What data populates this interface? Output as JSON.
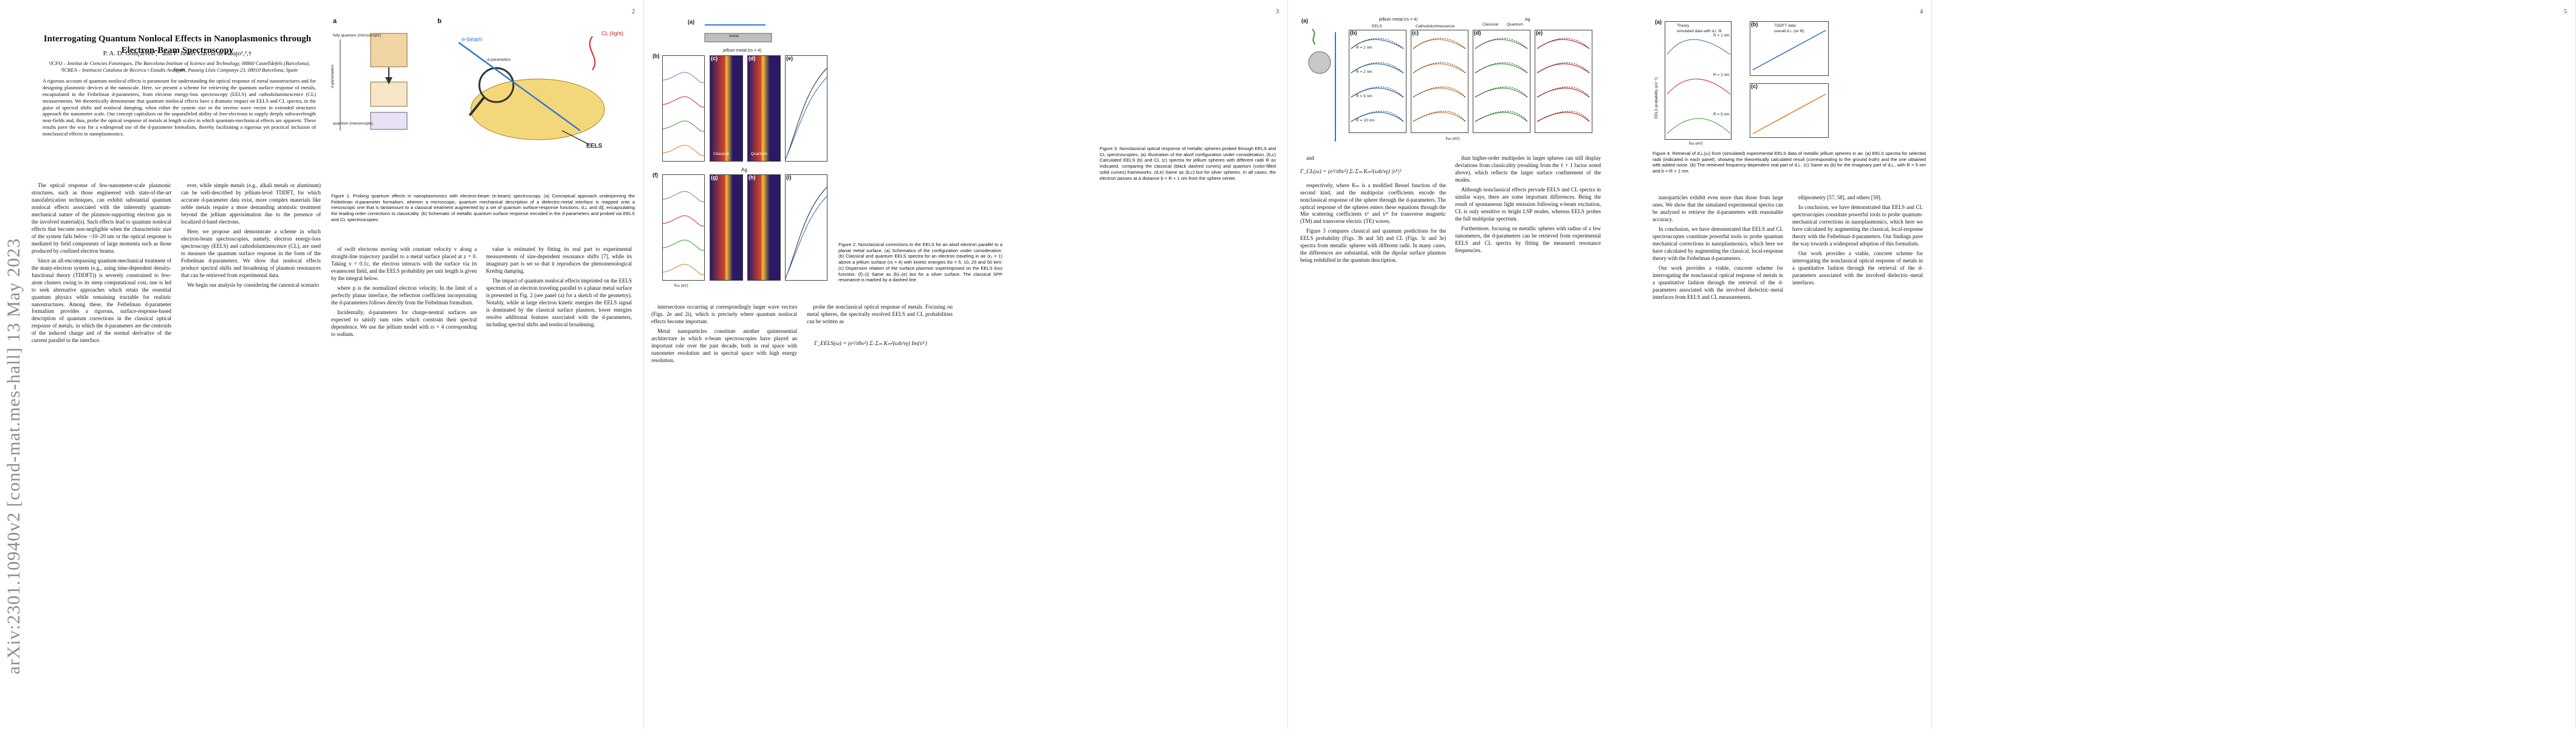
{
  "arxiv_id": "arXiv:2301.10940v2  [cond-mat.mes-hall]  13 May 2023",
  "page_numbers": [
    "2",
    "3",
    "4",
    "5"
  ],
  "title": "Interrogating Quantum Nonlocal Effects in Nanoplasmonics through Electron-Beam Spectroscopy",
  "authors": "P. A. D. Gonçalves¹,* and F. Javier García de Abajo¹,²,†",
  "affiliation_1": "¹ICFO – Institut de Ciencies Fotoniques, The Barcelona Institute of Science and Technology, 08860 Castelldefels (Barcelona), Spain",
  "affiliation_2": "²ICREA – Institució Catalana de Recerca i Estudis Avançats, Passeig Lluís Companys 23, 08010 Barcelona, Spain",
  "abstract": "A rigorous account of quantum nonlocal effects is paramount for understanding the optical response of metal nanostructures and for designing plasmonic devices at the nanoscale. Here, we present a scheme for retrieving the quantum surface response of metals, encapsulated in the Feibelman d-parameters, from electron energy-loss spectroscopy (EELS) and cathodoluminescence (CL) measurements. We theoretically demonstrate that quantum nonlocal effects have a dramatic impact on EELS and CL spectra, in the guise of spectral shifts and nonlocal damping, when either the system size or the inverse wave vector in extended structures approach the nanometer scale. Our concept capitalizes on the unparalleled ability of free-electrons to supply deeply subwavelength near-fields and, thus, probe the optical response of metals at length scales in which quantum-mechanical effects are apparent. These results pave the way for a widespread use of the d-parameter formalism, thereby facilitating a rigorous yet practical inclusion of nonclassical effects in nanoplasmonics.",
  "page1_col1": [
    "The optical response of few-nanometer-scale plasmonic structures, such as those engineered with state-of-the-art nanofabrication techniques, can exhibit substantial quantum nonlocal effects associated with the inherently quantum-mechanical nature of the plasmon-supporting electron gas in the involved material(s). Such effects lead to quantum nonlocal effects that become non-negligible when the characteristic size of the system falls below ~10–20 nm or the optical response is mediated by field components of large momenta such as those produced by confined electron beams.",
    "Since an all-encompassing quantum-mechanical treatment of the many-electron system (e.g., using time-dependent density-functional theory (TDDFT)) is severely constrained to few-atom clusters owing to its steep computational cost, one is led to seek alternative approaches which retain the essential quantum physics while remaining tractable for realistic nanostructures. Among these, the Feibelman d-parameter formalism provides a rigorous, surface-response-based description of quantum corrections in the classical optical response of metals, in which the d-parameters are the centroids of the induced charge and of the normal derivative of the current parallel to the interface."
  ],
  "page1_col2": [
    "ever, while simple metals (e.g., alkali metals or aluminum) can be well-described by jellium-level TDDFT, for which accurate d-parameter data exist, more complex materials like noble metals require a more demanding atomistic treatment beyond the jellium approximation due to the presence of localized d-band electrons.",
    "Here, we propose and demonstrate a scheme in which electron-beam spectroscopies, namely, electron energy-loss spectroscopy (EELS) and cathodoluminescence (CL), are used to measure the quantum surface response in the form of the Feibelman d-parameters. We show that nonlocal effects produce spectral shifts and broadening of plasmon resonances that can be retrieved from experimental data.",
    "We begin our analysis by considering the canonical scenario"
  ],
  "fig1_caption": "Figure 1. Probing quantum effects in nanoplasmonics with electron-beam (e-beam) spectroscopy. (a) Conceptual approach underpinning the Feibelman d-parameter formalism, wherein a microscopic, quantum mechanical description of a dielectric-metal interface is mapped onto a mesoscopic one that is tantamount to a classical treatment augmented by a set of quantum surface-response functions, d⊥ and d∥, encapsulating the leading-order corrections to classicality. (b) Schematic of metallic quantum surface response encoded in the d-parameters and probed via EELS and CL spectroscopies.",
  "fig1_labels": {
    "a": "a",
    "b": "b",
    "fully_quantum": "fully quantum (microscopic)",
    "d_parameters": "d-parameters",
    "quantum_meso": "quantum (mesoscopic)",
    "ebeam": "e-beam",
    "cl": "CL (light)",
    "eels": "EELS",
    "d_param_diag": "d-parameters"
  },
  "page2_col1": [
    "of swift electrons moving with constant velocity v along a straight-line trajectory parallel to a metal surface placed at z = 0. Taking v = 0.1c, the electron interacts with the surface via its evanescent field, and the EELS probability per unit length is given by the integral below.",
    "where p is the normalized electron velocity. In the limit of a perfectly planar interface, the reflection coefficient incorporating the d-parameters follows directly from the Feibelman formalism.",
    "Incidentally, d-parameters for charge-neutral surfaces are expected to satisfy sum rules which constrain their spectral dependence. We use the jellium model with rs = 4 corresponding to sodium."
  ],
  "page2_col2": [
    "value is estimated by fitting its real part to experimental measurements of size-dependent resonance shifts [7], while its imaginary part is set so that it reproduces the phenomenological Kreibig damping.",
    "The impact of quantum nonlocal effects imprinted on the EELS spectrum of an electron traveling parallel to a planar metal surface is presented in Fig. 2 (see panel (a) for a sketch of the geometry). Notably, while at large electron kinetic energies the EELS signal is dominated by the classical surface plasmon, lower energies resolve additional features associated with the d-parameters, including spectral shifts and nonlocal broadening."
  ],
  "fig2_caption": "Figure 2. Nonclassical corrections to the EELS for an aloof electron parallel to a planar metal surface. (a) Schematics of the configuration under consideration. (b) Classical and quantum EELS spectra for an electron traveling in air (ε₁ = 1) above a jellium surface (rs = 4) with kinetic energies Ee = 5, 10, 25 and 50 keV. (c) Dispersion relation of the surface plasmon superimposed on the EELS loss function. (f)–(i) Same as (b)–(e) but for a silver surface. The classical SPP resonance is marked by a dashed line.",
  "fig2_labels": {
    "a": "(a)",
    "b": "(b)",
    "c": "(c)",
    "d": "(d)",
    "e": "(e)",
    "f": "(f)",
    "g": "(g)",
    "h": "(h)",
    "i": "(i)",
    "metal": "metal",
    "jellium": "jellium metal (rs = 4)",
    "ag": "Ag",
    "classical": "Classical",
    "quantum": "Quantum",
    "xlabel": "ħω (eV)",
    "ylabel": "ΓEELS (µm⁻¹ eV⁻¹)"
  },
  "page2_bottom": [
    "intersections occurring at correspondingly larger wave vectors (Figs. 2e and 2i), which is precisely where quantum nonlocal effects become important.",
    "Metal nanoparticles constitute another quintessential architecture in which e-beam spectroscopies have played an important role over the past decade, both in real space with nanometer resolution and in spectral space with high energy resolution."
  ],
  "page2_bottom2": [
    "probe the nonclassical optical response of metals. Focusing on metal spheres, the spectrally resolved EELS and CL probabilities can be written as"
  ],
  "page3_col1": [
    "and",
    "respectively, where Kₘ is a modified Bessel function of the second kind, and the multipolar coefficients encode the nonclassical response of the sphere through the d-parameters. The optical response of the spheres enters these equations through the Mie scattering coefficients tₗᴱ and tₗᴹ for transverse magnetic (TM) and transverse electric (TE) waves.",
    "Figure 3 compares classical and quantum predictions for the EELS probability (Figs. 3b and 3d) and CL (Figs. 3c and 3e) spectra from metallic spheres with different radii. In many cases, the differences are substantial, with the dipolar surface plasmon being redshifted in the quantum description."
  ],
  "page3_col2": [
    "than higher-order multipoles in larger spheres can still display deviations from classicality (resulting from the ℓ + 1 factor noted above), which reflects the larger surface confinement of the modes.",
    "Although nonclassical effects pervade EELS and CL spectra in similar ways, there are some important differences. Being the result of spontaneous light emission following e-beam excitation, CL is only sensitive to bright LSP modes, whereas EELS probes the full multipolar spectrum.",
    "Furthermore, focusing on metallic spheres with radius of a few nanometers, the d-parameters can be retrieved from experimental EELS and CL spectra by fitting the measured resonance frequencies."
  ],
  "fig3_caption": "Figure 3. Nonclassical optical response of metallic spheres probed through EELS and CL spectroscopies. (a) Illustration of the aloof configuration under consideration. (b,c) Calculated EELS (b) and CL (c) spectra for jellium spheres with different radii R as indicated, comparing the classical (black dashed curves) and quantum (color-filled solid curves) frameworks. (d,e) Same as (b,c) but for silver spheres. In all cases, the electron passes at a distance b = R + 1 nm from the sphere center.",
  "fig3_labels": {
    "a": "(a)",
    "b": "(b)",
    "c": "(c)",
    "d": "(d)",
    "e": "(e)",
    "jellium": "jellium metal (rs = 4)",
    "ag": "Ag",
    "eels": "EELS",
    "cl": "Cathodoluminescence",
    "classical": "Classical",
    "quantum": "Quantum",
    "xlabel": "ħω (eV)",
    "ylabel": "EELS, CL probability (a.u.)",
    "radii": [
      "R = 1 nm",
      "R = 2 nm",
      "R = 5 nm",
      "R = 10 nm"
    ]
  },
  "page4_col1": [
    "nanoparticles exhibit even more than those from large ones. We show that the simulated experimental spectra can be analyzed to retrieve the d-parameters with reasonable accuracy.",
    "In conclusion, we have demonstrated that EELS and CL spectroscopies constitute powerful tools to probe quantum mechanical corrections in nanoplasmonics, which here we have calculated by augmenting the classical, local-response theory with the Feibelman d-parameters.",
    "Our work provides a viable, concrete scheme for interrogating the nonclassical optical response of metals in a quantitative fashion through the retrieval of the d-parameters associated with the involved dielectric–metal interfaces from EELS and CL measurements."
  ],
  "page4_col2": [
    "ellipsometry [57, 58], and others [59].",
    "In conclusion, we have demonstrated that EELS and CL spectroscopies constitute powerful tools to probe quantum-mechanical corrections in nanoplasmonics, which here we have calculated by augmenting the classical, local-response theory with the Feibelman d-parameters. Our findings pave the way towards a widespread adoption of this formalism.",
    "Our work provides a viable, concrete scheme for interrogating the nonclassical optical response of metals in a quantitative fashion through the retrieval of the d-parameters associated with the involved dielectric–metal interfaces."
  ],
  "fig4_caption": "Figure 4. Retrieval of d⊥(ω) from (simulated) experimental EELS data of metallic jellium spheres in air. (a) EELS spectra for selected radii (indicated in each panel), showing the theoretically calculated result (corresponding to the ground truth) and the one obtained with added noise. (b) The retrieved frequency-dependent real part of d⊥. (c) Same as (b) for the imaginary part of d⊥, with R = 5 nm and b = R + 1 nm.",
  "fig4_labels": {
    "a": "(a)",
    "b": "(b)",
    "c": "(c)",
    "legend_1": "Theory",
    "legend_2": "simulated data with d⊥ fit",
    "legend_3": "TDDFT data",
    "legend_4": "overall d⊥ (w/ fit)",
    "xlabel": "ħω (eV)",
    "ylabel": "EELS probability (eV⁻¹)",
    "radii": [
      "R = 1 nm",
      "R = 2 nm",
      "R = 5 nm"
    ]
  },
  "colors": {
    "classical": "#222222",
    "quantum_blue": "#2f6db5",
    "quantum_orange": "#e07b2a",
    "quantum_green": "#3a9a3a",
    "quantum_red": "#d62728",
    "heatmap_hot": "#f2c230"
  }
}
